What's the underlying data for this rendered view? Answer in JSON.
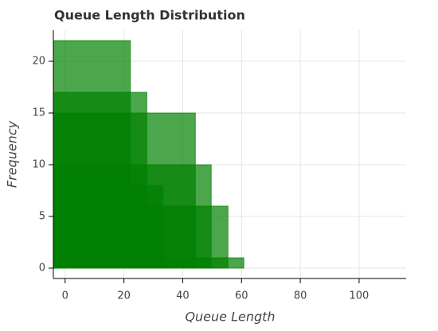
{
  "chart_data": {
    "type": "quad",
    "title": "Queue Length Distribution",
    "x_label": "Queue Length",
    "y_label": "Frequency",
    "left": [
      -4,
      -4,
      -4,
      -4,
      -4,
      -4,
      -4
    ],
    "right": [
      22.2,
      27.8,
      44.3,
      49.7,
      33.2,
      55.4,
      60.8
    ],
    "values": [
      22,
      17,
      15,
      10,
      8,
      6,
      1
    ],
    "color": "#008000",
    "alpha": 0.7,
    "xlim": [
      -4,
      116
    ],
    "ylim": [
      -1,
      23
    ],
    "xticks": [
      0,
      20,
      40,
      60,
      80,
      100
    ],
    "yticks": [
      0,
      5,
      10,
      15,
      20
    ],
    "grid": true
  }
}
